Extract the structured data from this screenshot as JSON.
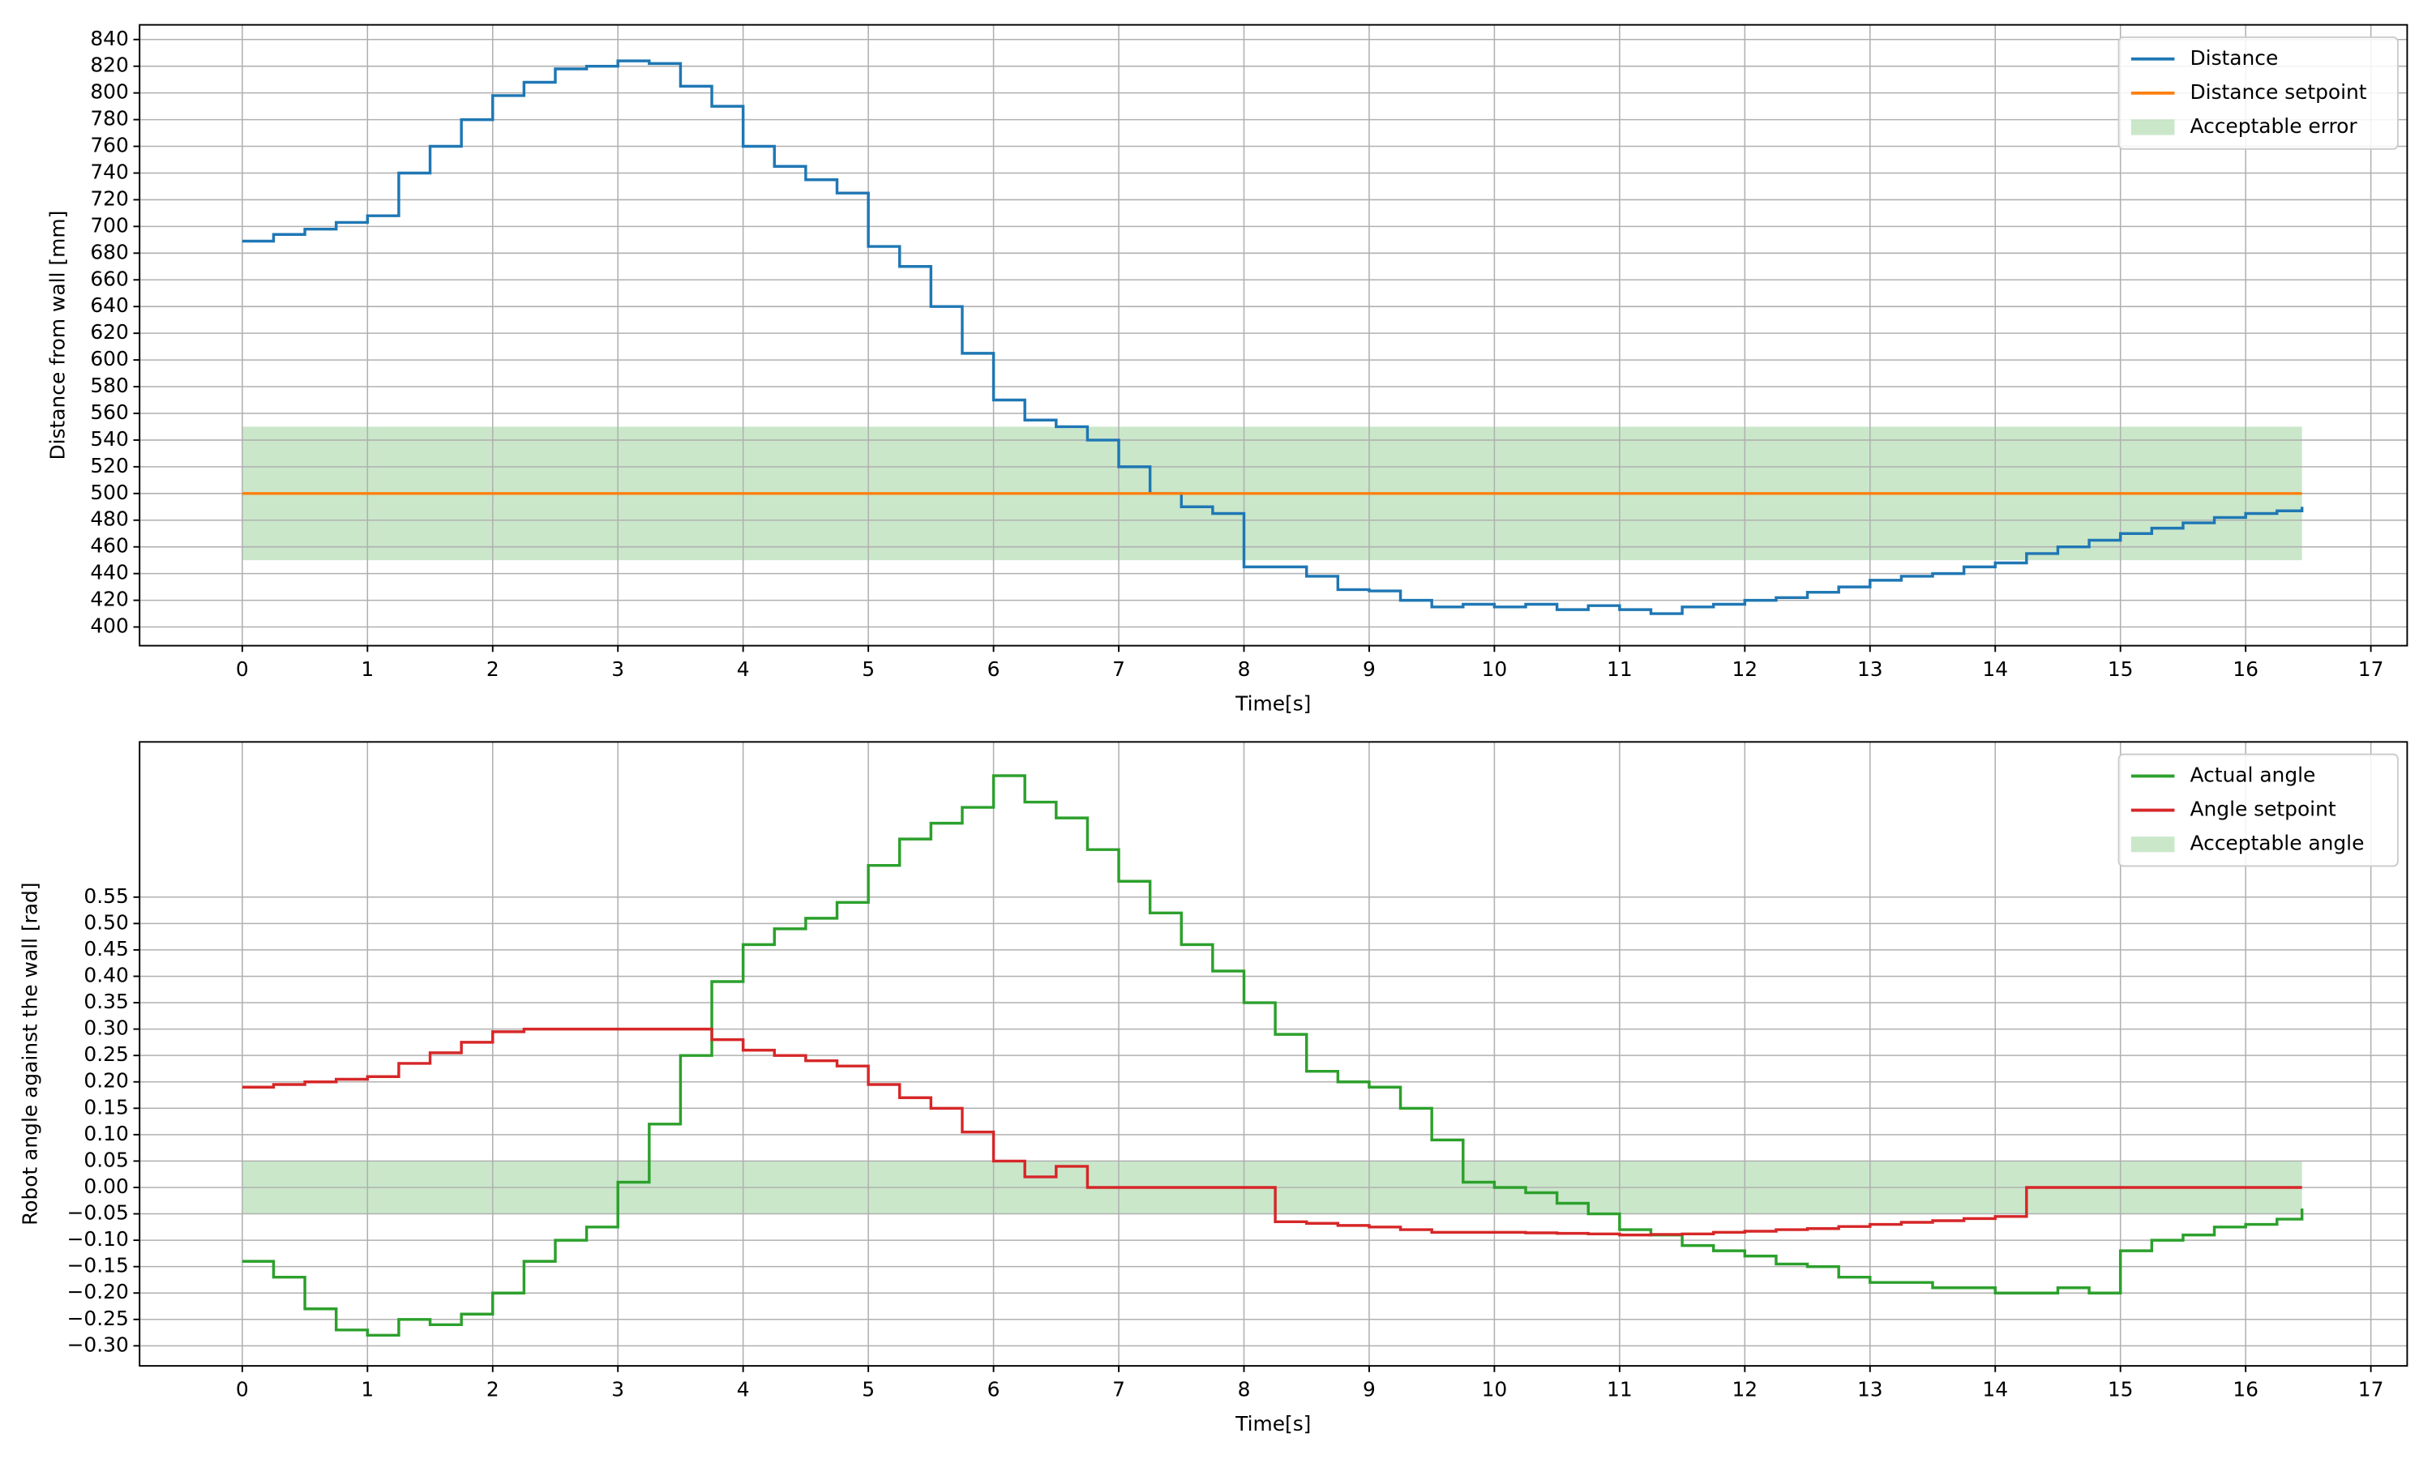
{
  "chart_data": [
    {
      "type": "line",
      "drawstyle": "steps-post",
      "x_label": "Time[s]",
      "y_label": "Distance from wall [mm]",
      "grid": true,
      "legend": "upper right",
      "x": [
        0,
        0.25,
        0.5,
        0.75,
        1,
        1.25,
        1.5,
        1.75,
        2,
        2.25,
        2.5,
        2.75,
        3,
        3.25,
        3.5,
        3.75,
        4,
        4.25,
        4.5,
        4.75,
        5,
        5.25,
        5.5,
        5.75,
        6,
        6.25,
        6.5,
        6.75,
        7,
        7.25,
        7.5,
        7.75,
        8,
        8.25,
        8.5,
        8.75,
        9,
        9.25,
        9.5,
        9.75,
        10,
        10.25,
        10.5,
        10.75,
        11,
        11.25,
        11.5,
        11.75,
        12,
        12.25,
        12.5,
        12.75,
        13,
        13.25,
        13.5,
        13.75,
        14,
        14.25,
        14.5,
        14.75,
        15,
        15.25,
        15.5,
        15.75,
        16,
        16.25,
        16.45
      ],
      "series": [
        {
          "name": "Distance",
          "color": "#1f77b4",
          "values": [
            689,
            694,
            698,
            703,
            708,
            740,
            760,
            780,
            798,
            808,
            818,
            820,
            824,
            822,
            805,
            790,
            760,
            745,
            735,
            725,
            685,
            670,
            640,
            605,
            570,
            555,
            550,
            540,
            520,
            500,
            490,
            485,
            445,
            445,
            438,
            428,
            427,
            420,
            415,
            417,
            415,
            417,
            413,
            416,
            413,
            410,
            415,
            417,
            420,
            422,
            426,
            430,
            435,
            438,
            440,
            445,
            448,
            455,
            460,
            465,
            470,
            474,
            478,
            482,
            485,
            487,
            490
          ]
        },
        {
          "name": "Distance setpoint",
          "color": "#ff7f0e",
          "values": [
            500,
            500,
            500,
            500,
            500,
            500,
            500,
            500,
            500,
            500,
            500,
            500,
            500,
            500,
            500,
            500,
            500,
            500,
            500,
            500,
            500,
            500,
            500,
            500,
            500,
            500,
            500,
            500,
            500,
            500,
            500,
            500,
            500,
            500,
            500,
            500,
            500,
            500,
            500,
            500,
            500,
            500,
            500,
            500,
            500,
            500,
            500,
            500,
            500,
            500,
            500,
            500,
            500,
            500,
            500,
            500,
            500,
            500,
            500,
            500,
            500,
            500,
            500,
            500,
            500,
            500,
            500
          ]
        }
      ],
      "band": {
        "name": "Acceptable error",
        "color": "#2ca02c",
        "x": [
          0,
          16.45
        ],
        "y": [
          450,
          550
        ]
      },
      "xlim": [
        -0.82,
        17.29
      ],
      "ylim": [
        386,
        851
      ],
      "xticks": [
        0,
        1,
        2,
        3,
        4,
        5,
        6,
        7,
        8,
        9,
        10,
        11,
        12,
        13,
        14,
        15,
        16,
        17
      ],
      "yticks": [
        400,
        420,
        440,
        460,
        480,
        500,
        520,
        540,
        560,
        580,
        600,
        620,
        640,
        660,
        680,
        700,
        720,
        740,
        760,
        780,
        800,
        820,
        840
      ]
    },
    {
      "type": "line",
      "drawstyle": "steps-post",
      "x_label": "Time[s]",
      "y_label": "Robot angle against the wall [rad]",
      "grid": true,
      "legend": "upper right",
      "x": [
        0,
        0.25,
        0.5,
        0.75,
        1,
        1.25,
        1.5,
        1.75,
        2,
        2.25,
        2.5,
        2.75,
        3,
        3.25,
        3.5,
        3.75,
        4,
        4.25,
        4.5,
        4.75,
        5,
        5.25,
        5.5,
        5.75,
        6,
        6.25,
        6.5,
        6.75,
        7,
        7.25,
        7.5,
        7.75,
        8,
        8.25,
        8.5,
        8.75,
        9,
        9.25,
        9.5,
        9.75,
        10,
        10.25,
        10.5,
        10.75,
        11,
        11.25,
        11.5,
        11.75,
        12,
        12.25,
        12.5,
        12.75,
        13,
        13.25,
        13.5,
        13.75,
        14,
        14.25,
        14.5,
        14.75,
        15,
        15.25,
        15.5,
        15.75,
        16,
        16.25,
        16.45
      ],
      "series": [
        {
          "name": "Actual angle",
          "color": "#2ca02c",
          "values": [
            -0.14,
            -0.17,
            -0.23,
            -0.27,
            -0.28,
            -0.25,
            -0.26,
            -0.24,
            -0.2,
            -0.14,
            -0.1,
            -0.075,
            0.01,
            0.12,
            0.25,
            0.39,
            0.46,
            0.49,
            0.51,
            0.54,
            0.61,
            0.66,
            0.69,
            0.72,
            0.78,
            0.73,
            0.7,
            0.64,
            0.58,
            0.52,
            0.46,
            0.41,
            0.35,
            0.29,
            0.22,
            0.2,
            0.19,
            0.15,
            0.09,
            0.01,
            0.0,
            -0.01,
            -0.03,
            -0.05,
            -0.08,
            -0.09,
            -0.11,
            -0.12,
            -0.13,
            -0.145,
            -0.15,
            -0.17,
            -0.18,
            -0.18,
            -0.19,
            -0.19,
            -0.2,
            -0.2,
            -0.19,
            -0.2,
            -0.12,
            -0.1,
            -0.09,
            -0.075,
            -0.07,
            -0.06,
            -0.04
          ]
        },
        {
          "name": "Angle setpoint",
          "color": "#d62728",
          "values": [
            0.19,
            0.195,
            0.2,
            0.205,
            0.21,
            0.235,
            0.255,
            0.275,
            0.295,
            0.3,
            0.3,
            0.3,
            0.3,
            0.3,
            0.3,
            0.28,
            0.26,
            0.25,
            0.24,
            0.23,
            0.195,
            0.17,
            0.15,
            0.105,
            0.05,
            0.02,
            0.04,
            0,
            0,
            0,
            0,
            0,
            0,
            -0.065,
            -0.068,
            -0.072,
            -0.075,
            -0.08,
            -0.085,
            -0.085,
            -0.085,
            -0.086,
            -0.087,
            -0.088,
            -0.09,
            -0.089,
            -0.088,
            -0.085,
            -0.083,
            -0.08,
            -0.078,
            -0.074,
            -0.07,
            -0.066,
            -0.063,
            -0.059,
            -0.055,
            0,
            0,
            0,
            0,
            0,
            0,
            0,
            0,
            0,
            0
          ]
        }
      ],
      "band": {
        "name": "Acceptable angle",
        "color": "#2ca02c",
        "x": [
          0,
          16.45
        ],
        "y": [
          -0.05,
          0.05
        ]
      },
      "xlim": [
        -0.82,
        17.29
      ],
      "ylim": [
        -0.338,
        0.844
      ],
      "xticks": [
        0,
        1,
        2,
        3,
        4,
        5,
        6,
        7,
        8,
        9,
        10,
        11,
        12,
        13,
        14,
        15,
        16,
        17
      ],
      "yticks": [
        {
          "value": -0.3,
          "label": "−0.30"
        },
        {
          "value": -0.25,
          "label": "−0.25"
        },
        {
          "value": -0.2,
          "label": "−0.20"
        },
        {
          "value": -0.15,
          "label": "−0.15"
        },
        {
          "value": -0.1,
          "label": "−0.10"
        },
        {
          "value": -0.05,
          "label": "−0.05"
        },
        {
          "value": 0,
          "label": "0.00"
        },
        {
          "value": 0.05,
          "label": "0.05"
        },
        {
          "value": 0.1,
          "label": "0.10"
        },
        {
          "value": 0.15,
          "label": "0.15"
        },
        {
          "value": 0.2,
          "label": "0.20"
        },
        {
          "value": 0.25,
          "label": "0.25"
        },
        {
          "value": 0.3,
          "label": "0.30"
        },
        {
          "value": 0.35,
          "label": "0.35"
        },
        {
          "value": 0.4,
          "label": "0.40"
        },
        {
          "value": 0.45,
          "label": "0.45"
        },
        {
          "value": 0.5,
          "label": "0.50"
        },
        {
          "value": 0.55,
          "label": "0.55"
        }
      ]
    }
  ]
}
